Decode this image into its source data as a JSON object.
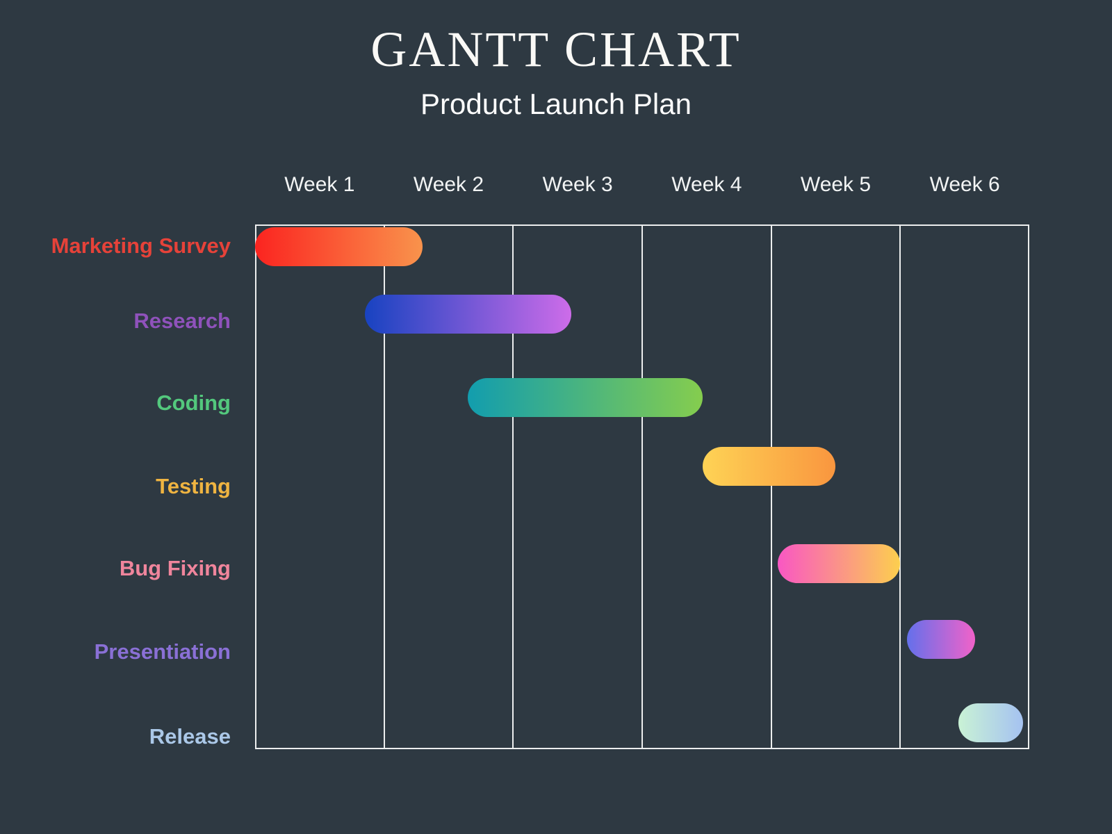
{
  "header": {
    "title": "GANTT CHART",
    "subtitle": "Product Launch Plan"
  },
  "chart_data": {
    "type": "bar",
    "variant": "gantt",
    "orientation": "horizontal",
    "title": "GANTT CHART",
    "subtitle": "Product Launch Plan",
    "categories": [
      "Week 1",
      "Week 2",
      "Week 3",
      "Week 4",
      "Week 5",
      "Week 6"
    ],
    "x_range_weeks": [
      0,
      6
    ],
    "grid": {
      "vertical_lines": true,
      "horizontal_row_lines": false,
      "legend": "none"
    },
    "colors": {
      "background": "#2e3942",
      "grid_line": "#eceeee",
      "axis_text": "#f2f4f4",
      "title_text": "#faf9f6"
    },
    "tasks": [
      {
        "label": "Marketing Survey",
        "start_week": 0,
        "end_week": 1.3,
        "label_color": "#e64239",
        "bar_gradient_start": "#fb2420",
        "bar_gradient_end": "#f9934c"
      },
      {
        "label": "Research",
        "start_week": 0.85,
        "end_week": 2.45,
        "label_color": "#8f52bb",
        "bar_gradient_start": "#1843c1",
        "bar_gradient_end": "#cd6ce9"
      },
      {
        "label": "Coding",
        "start_week": 1.65,
        "end_week": 3.47,
        "label_color": "#53c87d",
        "bar_gradient_start": "#129dae",
        "bar_gradient_end": "#85cd4e"
      },
      {
        "label": "Testing",
        "start_week": 3.47,
        "end_week": 4.5,
        "label_color": "#efb441",
        "bar_gradient_start": "#fed355",
        "bar_gradient_end": "#f9963f"
      },
      {
        "label": "Bug Fixing",
        "start_week": 4.05,
        "end_week": 5.0,
        "label_color": "#f0859c",
        "bar_gradient_start": "#f957c3",
        "bar_gradient_end": "#fccf4e"
      },
      {
        "label": "Presentiation",
        "start_week": 5.05,
        "end_week": 5.58,
        "label_color": "#8a70d6",
        "bar_gradient_start": "#6470eb",
        "bar_gradient_end": "#f162c9"
      },
      {
        "label": "Release",
        "start_week": 5.45,
        "end_week": 5.95,
        "label_color": "#abc8e8",
        "bar_gradient_start": "#c9f2d5",
        "bar_gradient_end": "#a5c2f1"
      }
    ]
  }
}
